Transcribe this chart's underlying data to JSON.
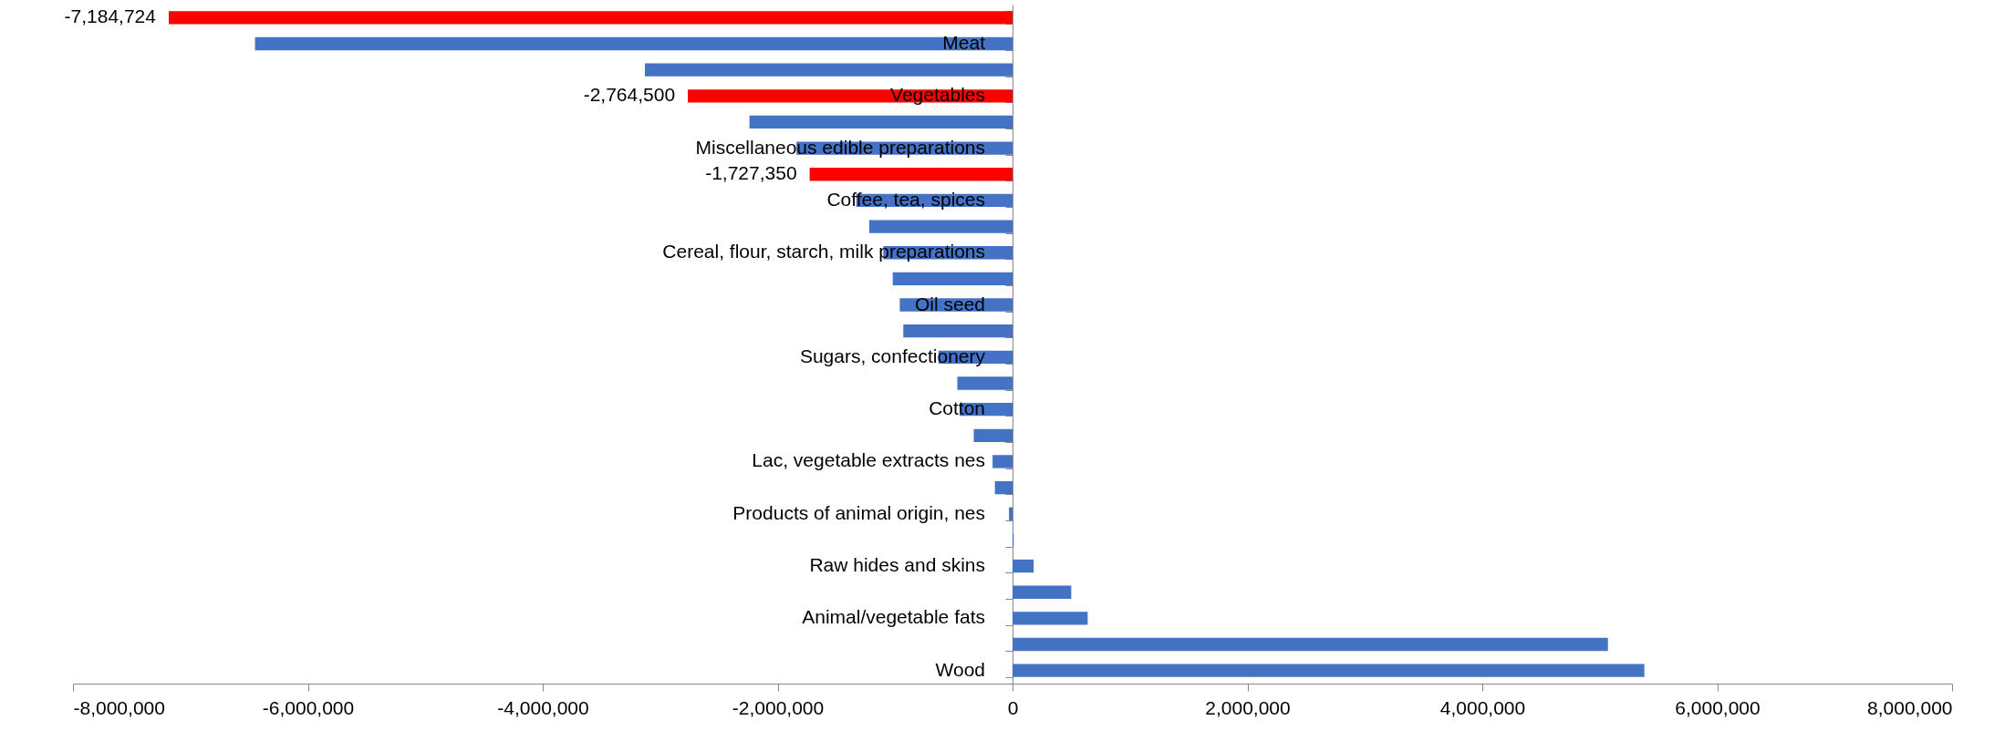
{
  "chart_data": {
    "type": "bar",
    "orientation": "horizontal",
    "categories": [
      null,
      "Meat",
      null,
      "Vegetables",
      null,
      "Miscellaneous edible preparations",
      null,
      "Coffee, tea, spices",
      null,
      "Cereal, flour, starch, milk preparations",
      null,
      "Oil seed",
      null,
      "Sugars, confectionery",
      null,
      "Cotton",
      null,
      "Lac, vegetable extracts nes",
      null,
      "Products of animal origin, nes",
      null,
      "Raw hides and skins",
      null,
      "Animal/vegetable fats",
      null,
      "Wood"
    ],
    "values": [
      -7184724,
      -6450000,
      -3130000,
      -2764500,
      -2240000,
      -1840000,
      -1727350,
      -1330000,
      -1220000,
      -1100000,
      -1020000,
      -960000,
      -930000,
      -630000,
      -470000,
      -450000,
      -330000,
      -170000,
      -150000,
      -30000,
      10000,
      180000,
      500000,
      640000,
      5070000,
      5380000
    ],
    "colors": [
      "#ff0000",
      "#4472c4",
      "#4472c4",
      "#ff0000",
      "#4472c4",
      "#4472c4",
      "#ff0000",
      "#4472c4",
      "#4472c4",
      "#4472c4",
      "#4472c4",
      "#4472c4",
      "#4472c4",
      "#4472c4",
      "#4472c4",
      "#4472c4",
      "#4472c4",
      "#4472c4",
      "#4472c4",
      "#4472c4",
      "#4472c4",
      "#4472c4",
      "#4472c4",
      "#4472c4",
      "#4472c4",
      "#4472c4"
    ],
    "value_labels": [
      "-7,184,724",
      null,
      null,
      "-2,764,500",
      null,
      null,
      "-1,727,350",
      null,
      null,
      null,
      null,
      null,
      null,
      null,
      null,
      null,
      null,
      null,
      null,
      null,
      null,
      null,
      null,
      null,
      null,
      null
    ],
    "xlim": [
      -8000000,
      8000000
    ],
    "xticks": [
      {
        "value": -8000000,
        "label": "-8,000,000"
      },
      {
        "value": -6000000,
        "label": "-6,000,000"
      },
      {
        "value": -4000000,
        "label": "-4,000,000"
      },
      {
        "value": -2000000,
        "label": "-2,000,000"
      },
      0,
      {
        "value": 2000000,
        "label": "2,000,000"
      },
      {
        "value": 4000000,
        "label": "4,000,000"
      },
      {
        "value": 6000000,
        "label": "6,000,000"
      },
      {
        "value": 8000000,
        "label": "8,000,000"
      }
    ],
    "grid": false
  }
}
